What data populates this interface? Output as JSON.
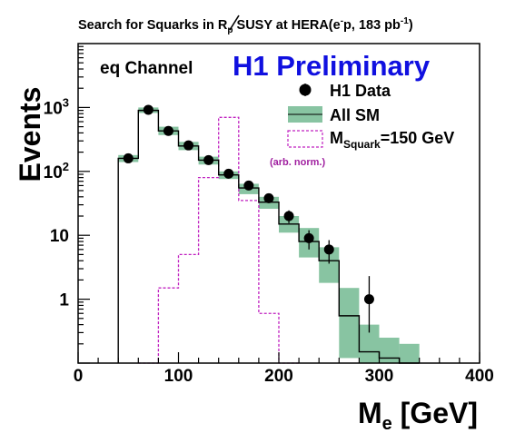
{
  "chart_data": {
    "type": "histogram",
    "title_parts": {
      "pre": "Search for Squarks in ",
      "rp": "R",
      "rp_sub": "p",
      "mid": " SUSY at HERA(e",
      "e_sup": "-",
      "post": "p, 183 pb",
      "lumi_sup": "-1",
      "end": ")"
    },
    "channel_label": "eq Channel",
    "preliminary_label": "H1 Preliminary",
    "xlabel": {
      "main": "M",
      "sub": "e",
      "unit": " [GeV]"
    },
    "ylabel": "Events",
    "xlim": [
      0,
      400
    ],
    "ylim_log": [
      0.1,
      10000
    ],
    "log_y": true,
    "x_ticks": [
      0,
      100,
      200,
      300,
      400
    ],
    "y_ticks": [
      1,
      10,
      100,
      1000
    ],
    "y_tick_labels": [
      "1",
      "10",
      "10^2",
      "10^3"
    ],
    "bin_width": 20,
    "bin_edges_start": 40,
    "sm_prediction": [
      160,
      900,
      430,
      250,
      150,
      88,
      55,
      33,
      15,
      8,
      4,
      0.55,
      0.15,
      0.12,
      0.1
    ],
    "sm_band_low": [
      140,
      820,
      370,
      215,
      128,
      76,
      44,
      26,
      11,
      4.5,
      1.8,
      0.12,
      0.1,
      0.1,
      0.1
    ],
    "sm_band_high": [
      180,
      1000,
      500,
      290,
      170,
      100,
      64,
      40,
      20,
      13,
      6.5,
      1.5,
      0.4,
      0.25,
      0.2
    ],
    "signal_bins": [
      {
        "x0": 60,
        "x1": 80,
        "value": 0.1
      },
      {
        "x0": 80,
        "x1": 100,
        "value": 1.5
      },
      {
        "x0": 100,
        "x1": 120,
        "value": 5
      },
      {
        "x0": 120,
        "x1": 140,
        "value": 80
      },
      {
        "x0": 140,
        "x1": 160,
        "value": 700
      },
      {
        "x0": 160,
        "x1": 180,
        "value": 35
      },
      {
        "x0": 180,
        "x1": 200,
        "value": 0.6
      },
      {
        "x0": 200,
        "x1": 220,
        "value": 0.1
      }
    ],
    "data_points": [
      {
        "x": 50,
        "y": 160,
        "ylo": 145,
        "yhi": 175
      },
      {
        "x": 70,
        "y": 920,
        "ylo": 880,
        "yhi": 960
      },
      {
        "x": 90,
        "y": 430,
        "ylo": 405,
        "yhi": 455
      },
      {
        "x": 110,
        "y": 255,
        "ylo": 235,
        "yhi": 275
      },
      {
        "x": 130,
        "y": 150,
        "ylo": 137,
        "yhi": 163
      },
      {
        "x": 150,
        "y": 92,
        "ylo": 82,
        "yhi": 102
      },
      {
        "x": 170,
        "y": 60,
        "ylo": 52,
        "yhi": 68
      },
      {
        "x": 190,
        "y": 38,
        "ylo": 32,
        "yhi": 44
      },
      {
        "x": 210,
        "y": 20,
        "ylo": 15.5,
        "yhi": 24.5
      },
      {
        "x": 230,
        "y": 9,
        "ylo": 6,
        "yhi": 12
      },
      {
        "x": 250,
        "y": 6,
        "ylo": 3.6,
        "yhi": 8.4
      },
      {
        "x": 290,
        "y": 1,
        "ylo": 0.3,
        "yhi": 2.3
      }
    ],
    "legend": {
      "placement": "top-right",
      "data_label": "H1 Data",
      "sm_label": "All SM",
      "signal_label_main": "M",
      "signal_label_sub": "Squark",
      "signal_label_val": "=150 GeV",
      "signal_note": "(arb. norm.)"
    },
    "colors": {
      "sm_band": "#88c4a2",
      "sm_line": "#000000",
      "signal": "#c020c0",
      "data": "#000000",
      "preliminary": "#1010e0",
      "note": "#a020a0"
    }
  }
}
